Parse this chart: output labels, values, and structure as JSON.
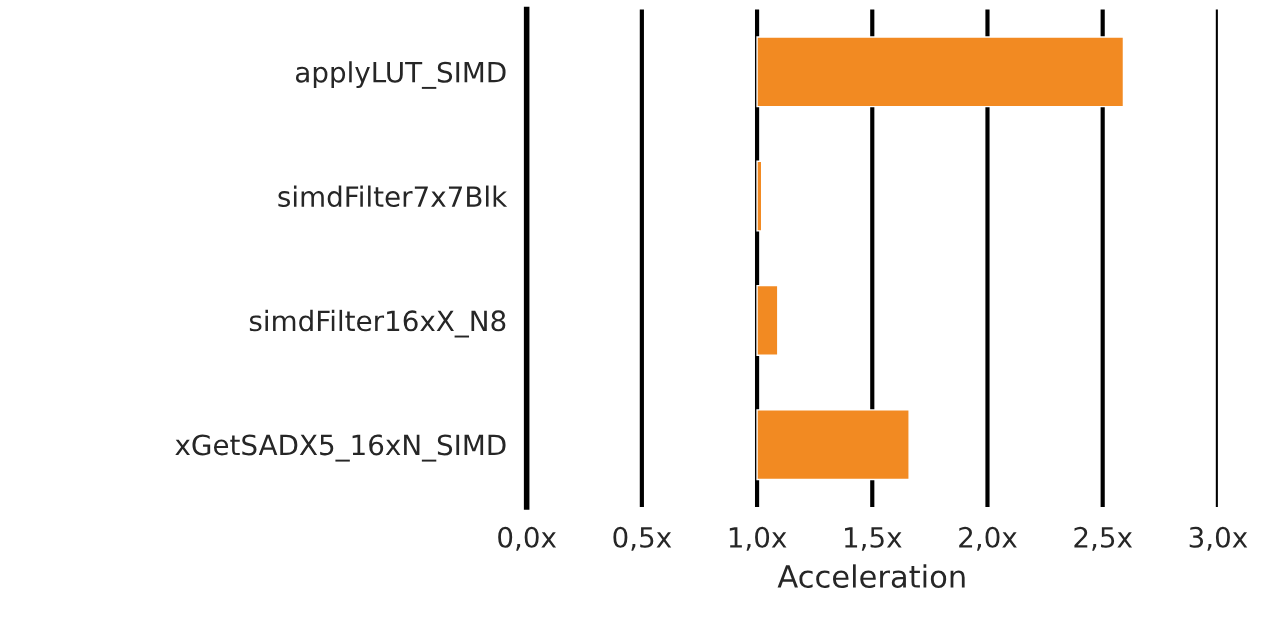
{
  "chart_data": {
    "type": "bar",
    "orientation": "horizontal",
    "categories": [
      "applyLUT_SIMD",
      "simdFilter7x7Blk",
      "simdFilter16xX_N8",
      "xGetSADX5_16xN_SIMD"
    ],
    "base": [
      1.0,
      1.0,
      1.0,
      1.0
    ],
    "values": [
      1.59,
      0.02,
      0.09,
      0.66
    ],
    "color": "#f28a22",
    "xlabel": "Acceleration",
    "xlim": [
      0,
      3.0
    ],
    "xticks": [
      {
        "value": 0,
        "label": "0,0x"
      },
      {
        "value": 0.5,
        "label": "0,5x"
      },
      {
        "value": 1.0,
        "label": "1,0x"
      },
      {
        "value": 1.5,
        "label": "1,5x"
      },
      {
        "value": 2.0,
        "label": "2,0x"
      },
      {
        "value": 2.5,
        "label": "2,5x"
      },
      {
        "value": 3.0,
        "label": "3,0x"
      }
    ],
    "grid": "x"
  }
}
